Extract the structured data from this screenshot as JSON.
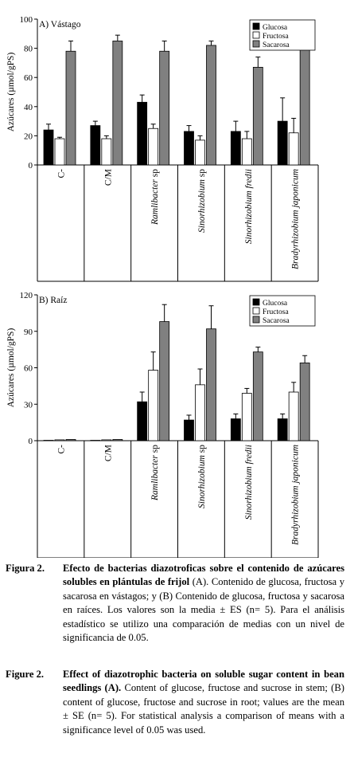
{
  "legend": [
    "Glucosa",
    "Fructosa",
    "Sacarosa"
  ],
  "colors": {
    "Glucosa": "#000000",
    "Fructosa": "#ffffff",
    "Sacarosa": "#808080"
  },
  "chart_data": [
    {
      "type": "bar",
      "title": "A) Vástago",
      "ylabel": "Azúcares (µmol/gPS)",
      "ylim": [
        0,
        100
      ],
      "yticks": [
        "0",
        "20",
        "40",
        "60",
        "80",
        "100"
      ],
      "categories": [
        "C-",
        "C/M",
        "Ramlibacter sp",
        "Sinorhizobium sp",
        "Sinorhizobium fredii",
        "Bradyrhizobium japonicum"
      ],
      "series": [
        {
          "name": "Glucosa",
          "values": [
            24,
            27,
            43,
            23,
            23,
            30
          ],
          "errors": [
            4,
            3,
            5,
            4,
            7,
            16
          ]
        },
        {
          "name": "Fructosa",
          "values": [
            18,
            18,
            25,
            17,
            18,
            22
          ],
          "errors": [
            1,
            2,
            3,
            3,
            5,
            10
          ]
        },
        {
          "name": "Sacarosa",
          "values": [
            78,
            85,
            78,
            82,
            67,
            80
          ],
          "errors": [
            7,
            4,
            7,
            3,
            7,
            10
          ]
        }
      ],
      "legend_position": "top-right",
      "grid": false
    },
    {
      "type": "bar",
      "title": "B) Raíz",
      "ylabel": "Azúcares (µmol/gPS)",
      "ylim": [
        0,
        120
      ],
      "yticks": [
        "0",
        "30",
        "60",
        "90",
        "120"
      ],
      "categories": [
        "C-",
        "C/M",
        "Ramlibacter sp",
        "Sinorhizobium sp",
        "Sinorhizobium fredii",
        "Bradyrhizobium japonicum"
      ],
      "series": [
        {
          "name": "Glucosa",
          "values": [
            0.3,
            0.3,
            32,
            17,
            18,
            18
          ],
          "errors": [
            0,
            0,
            8,
            4,
            4,
            4
          ]
        },
        {
          "name": "Fructosa",
          "values": [
            0.7,
            0.7,
            58,
            46,
            39,
            40
          ],
          "errors": [
            0,
            0,
            15,
            13,
            4,
            8
          ]
        },
        {
          "name": "Sacarosa",
          "values": [
            1,
            1,
            98,
            92,
            73,
            64
          ],
          "errors": [
            0,
            0,
            14,
            19,
            4,
            6
          ]
        }
      ],
      "legend_position": "top-right",
      "grid": false
    }
  ],
  "caption_es": {
    "label": "Figura 2.",
    "bold": "Efecto de bacterias diazotroficas sobre el contenido de azúcares solubles en plántulas de frijol",
    "rest": " (A). Contenido de glucosa, fructosa y sacarosa en vástagos; y (B) Contenido de glucosa, fructosa y sacarosa en raíces. Los valores son la media ± ES (n= 5). Para el análisis estadístico se utilizo una comparación de medias con un nivel de significancia de 0.05."
  },
  "caption_en": {
    "label": "Figure 2.",
    "bold": "Effect of diazotrophic bacteria on soluble sugar content in bean seedlings (A).",
    "rest": " Content of glucose, fructose and sucrose in stem; (B) content of glucose, fructose and sucrose in root; values are the mean ± SE (n= 5). For statistical analysis a comparison of means with a significance level of 0.05 was used."
  }
}
